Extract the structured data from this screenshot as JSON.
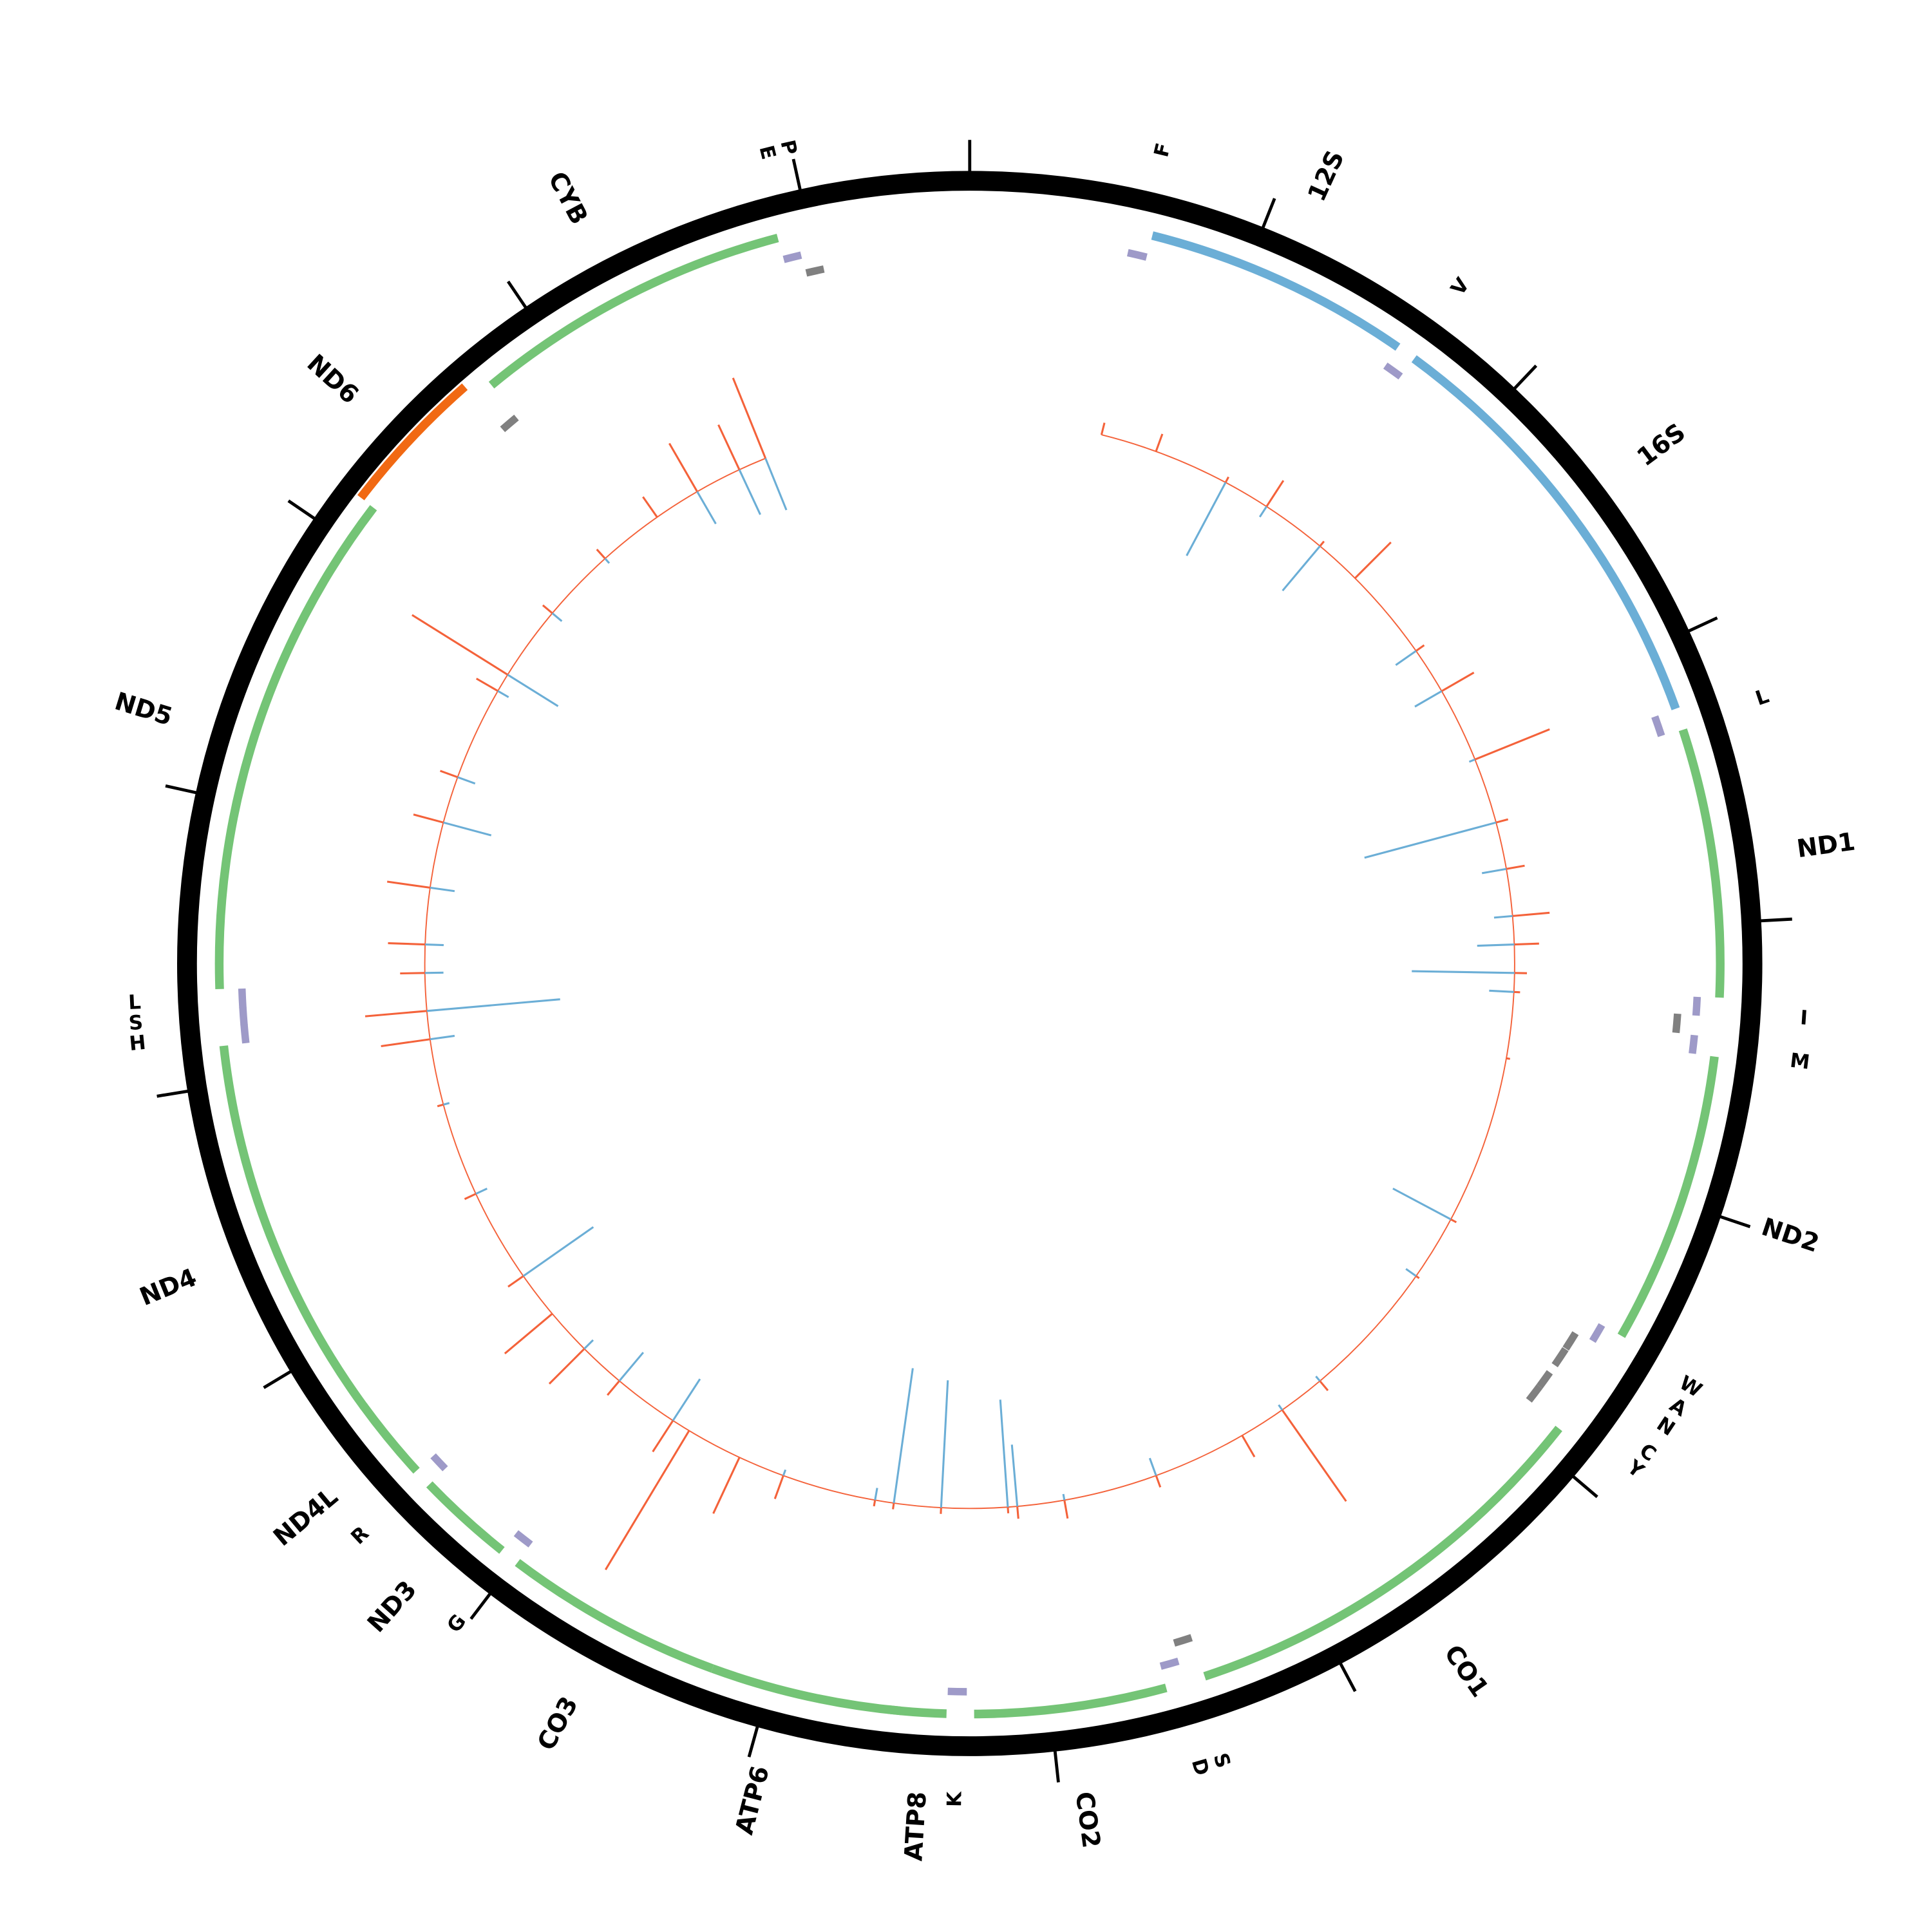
{
  "chart_data": {
    "type": "circular-genome",
    "xlim": [
      0,
      16569
    ],
    "ticks": [
      0,
      1000,
      2000,
      3000,
      4000,
      5000,
      6000,
      7000,
      8000,
      9000,
      10000,
      11000,
      12000,
      13000,
      14000,
      15000,
      16000
    ],
    "gene_tracks": [
      {
        "genes": [
          {
            "start": 648,
            "end": 1601,
            "color": "#6baed6"
          },
          {
            "start": 1671,
            "end": 3229,
            "color": "#6baed6"
          },
          {
            "start": 3307,
            "end": 4262,
            "color": "#74c476"
          },
          {
            "start": 4470,
            "end": 5511,
            "color": "#74c476"
          },
          {
            "start": 5904,
            "end": 7445,
            "color": "#74c476"
          },
          {
            "start": 7586,
            "end": 8269,
            "color": "#74c476"
          },
          {
            "start": 8366,
            "end": 8572,
            "color": "#74c476"
          },
          {
            "start": 8527,
            "end": 9207,
            "color": "#74c476"
          },
          {
            "start": 9207,
            "end": 9990,
            "color": "#74c476"
          },
          {
            "start": 10059,
            "end": 10404,
            "color": "#74c476"
          },
          {
            "start": 10470,
            "end": 10766,
            "color": "#74c476"
          },
          {
            "start": 10760,
            "end": 12137,
            "color": "#74c476"
          },
          {
            "start": 12337,
            "end": 14148,
            "color": "#74c476"
          },
          {
            "start": 14747,
            "end": 15887,
            "color": "#74c476"
          }
        ]
      },
      {
        "genes": [
          {
            "start": 14149,
            "end": 14673,
            "color": "#f16913"
          }
        ]
      }
    ],
    "trna_tracks": [
      {
        "color": "#9e9ac8",
        "genes": [
          {
            "start": 577,
            "end": 647
          },
          {
            "start": 1602,
            "end": 1670
          },
          {
            "start": 3230,
            "end": 3304
          },
          {
            "start": 4263,
            "end": 4331
          },
          {
            "start": 4402,
            "end": 4469
          },
          {
            "start": 5512,
            "end": 5579
          },
          {
            "start": 7518,
            "end": 7585
          },
          {
            "start": 8295,
            "end": 8364
          },
          {
            "start": 9991,
            "end": 10058
          },
          {
            "start": 10405,
            "end": 10469
          },
          {
            "start": 12138,
            "end": 12206
          },
          {
            "start": 12207,
            "end": 12265
          },
          {
            "start": 12266,
            "end": 12336
          },
          {
            "start": 15888,
            "end": 15953
          }
        ]
      },
      {
        "color": "#808080",
        "genes": [
          {
            "start": 4329,
            "end": 4400
          },
          {
            "start": 5587,
            "end": 5655
          },
          {
            "start": 5657,
            "end": 5729
          },
          {
            "start": 5761,
            "end": 5826
          },
          {
            "start": 5826,
            "end": 5891
          },
          {
            "start": 7446,
            "end": 7514
          },
          {
            "start": 14674,
            "end": 14742
          },
          {
            "start": 15956,
            "end": 16023
          }
        ]
      }
    ],
    "labels": [
      {
        "text": "12S",
        "pos": 1125
      },
      {
        "text": "16S",
        "pos": 2450
      },
      {
        "text": "ND1",
        "pos": 3785
      },
      {
        "text": "ND2",
        "pos": 4990
      },
      {
        "text": "CO1",
        "pos": 6675
      },
      {
        "text": "CO2",
        "pos": 7928
      },
      {
        "text": "ATP8",
        "pos": 8445
      },
      {
        "text": "ATP6",
        "pos": 8950
      },
      {
        "text": "CO3",
        "pos": 9590
      },
      {
        "text": "ND3",
        "pos": 10210
      },
      {
        "text": "ND4L",
        "pos": 10590
      },
      {
        "text": "ND4",
        "pos": 11410
      },
      {
        "text": "ND5",
        "pos": 13210
      },
      {
        "text": "ND6",
        "pos": 14380
      },
      {
        "text": "CYB",
        "pos": 15290
      }
    ],
    "trna_labels": [
      {
        "text": "F",
        "pos": 617
      },
      {
        "text": "V",
        "pos": 1657
      },
      {
        "text": "L",
        "pos": 3291
      },
      {
        "text": "I",
        "pos": 4317
      },
      {
        "text": "M",
        "pos": 4455
      },
      {
        "text": "W",
        "pos": 5545
      },
      {
        "text": "A",
        "pos": 5621
      },
      {
        "text": "N",
        "pos": 5693
      },
      {
        "text": "C",
        "pos": 5793
      },
      {
        "text": "Y",
        "pos": 5858
      },
      {
        "text": "S",
        "pos": 7480
      },
      {
        "text": "D",
        "pos": 7551
      },
      {
        "text": "K",
        "pos": 8329
      },
      {
        "text": "G",
        "pos": 10024
      },
      {
        "text": "R",
        "pos": 10437
      },
      {
        "text": "H",
        "pos": 12172
      },
      {
        "text": "S",
        "pos": 12236
      },
      {
        "text": "L",
        "pos": 12301
      },
      {
        "text": "E",
        "pos": 15921
      },
      {
        "text": "P",
        "pos": 15990
      }
    ],
    "coverage": {
      "positions": [
        644,
        920,
        1289,
        1519,
        1841,
        2071,
        2531,
        2762,
        3130,
        3452,
        3682,
        3912,
        4050,
        4188,
        4280,
        4603,
        5431,
        5753,
        6444,
        6674,
        6904,
        7364,
        7824,
        8054,
        8100,
        8423,
        8653,
        8745,
        9205,
        9435,
        9711,
        9803,
        10126,
        10356,
        10586,
        10816,
        11276,
        11736,
        12059,
        12197,
        12381,
        12519,
        12795,
        13117,
        13347,
        13808,
        13900,
        14268,
        14636,
        14958,
        15188,
        15418,
        15556
      ],
      "series": [
        {
          "color": "#f4623a",
          "values": [
            10,
            15,
            5,
            25,
            5,
            41,
            8,
            30,
            65,
            10,
            15,
            30,
            20,
            10,
            5,
            3,
            5,
            3,
            10,
            90,
            20,
            10,
            15,
            10,
            5,
            5,
            5,
            5,
            20,
            50,
            131,
            30,
            15,
            40,
            50,
            15,
            10,
            5,
            40,
            50,
            20,
            30,
            35,
            25,
            15,
            20,
            91,
            10,
            10,
            20,
            45,
            40,
            70
          ]
        },
        {
          "color": "#6baed6",
          "values": [
            0,
            0,
            67,
            10,
            47,
            0,
            20,
            25,
            5,
            110,
            20,
            15,
            30,
            83,
            20,
            0,
            53,
            10,
            5,
            5,
            0,
            15,
            5,
            50,
            87,
            103,
            110,
            10,
            5,
            0,
            0,
            40,
            30,
            10,
            0,
            69,
            10,
            5,
            20,
            108,
            15,
            15,
            20,
            40,
            15,
            10,
            48,
            10,
            5,
            0,
            30,
            40,
            45
          ]
        }
      ]
    }
  }
}
